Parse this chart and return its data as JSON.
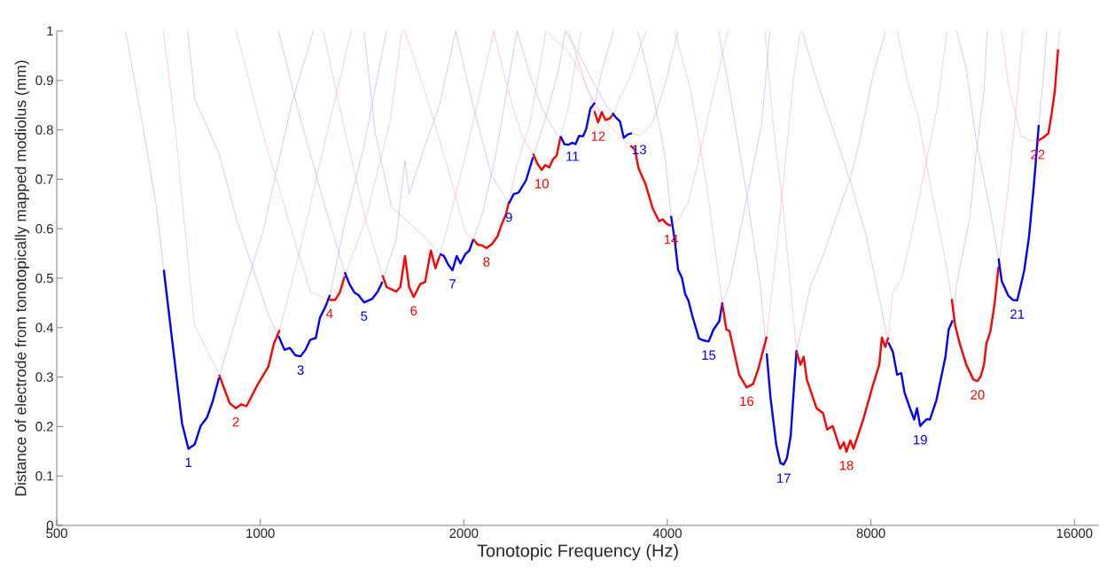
{
  "chart_data": {
    "type": "line",
    "xlabel": "Tonotopic Frequency (Hz)",
    "ylabel": "Distance of electrode from tonotopically mapped modiolus (mm)",
    "log": "x",
    "marker": "none",
    "xlim": [
      500,
      17400
    ],
    "ylim": [
      0,
      1
    ],
    "xticks": [
      500,
      1000,
      2000,
      4000,
      8000,
      16000
    ],
    "yticks": [
      0,
      0.1,
      0.2,
      0.3,
      0.4,
      0.5,
      0.6,
      0.7,
      0.8,
      0.9,
      1
    ],
    "series": [
      {
        "color": "#0000ff",
        "x": [
          720,
          766,
          783,
          800,
          816,
          834,
          850,
          869
        ],
        "values": [
          0.517,
          0.207,
          0.155,
          0.164,
          0.201,
          0.218,
          0.25,
          0.299
        ]
      },
      {
        "color": "#ff0000",
        "x": [
          869,
          901,
          920,
          938,
          954,
          993,
          1028,
          1047,
          1068
        ],
        "values": [
          0.305,
          0.247,
          0.237,
          0.245,
          0.241,
          0.287,
          0.321,
          0.367,
          0.395
        ]
      },
      {
        "color": "#0000ff",
        "x": [
          1064,
          1086,
          1106,
          1127,
          1147,
          1166,
          1185,
          1208,
          1225,
          1248,
          1268
        ],
        "values": [
          0.383,
          0.355,
          0.359,
          0.344,
          0.342,
          0.355,
          0.375,
          0.379,
          0.42,
          0.442,
          0.466
        ]
      },
      {
        "color": "#ff0000",
        "x": [
          1266,
          1290,
          1311,
          1333
        ],
        "values": [
          0.456,
          0.456,
          0.471,
          0.504
        ]
      },
      {
        "color": "#0000ff",
        "x": [
          1333,
          1355,
          1378,
          1397,
          1424,
          1463,
          1492,
          1516
        ],
        "values": [
          0.512,
          0.488,
          0.471,
          0.466,
          0.451,
          0.458,
          0.473,
          0.493
        ]
      },
      {
        "color": "#ff0000",
        "x": [
          1516,
          1538,
          1589,
          1611,
          1637,
          1660,
          1686,
          1724,
          1753,
          1788,
          1816,
          1843
        ],
        "values": [
          0.506,
          0.482,
          0.473,
          0.482,
          0.545,
          0.482,
          0.462,
          0.488,
          0.492,
          0.556,
          0.52,
          0.546
        ]
      },
      {
        "color": "#0000ff",
        "x": [
          1843,
          1869,
          1898,
          1925,
          1952,
          1978,
          2011,
          2038,
          2066
        ],
        "values": [
          0.549,
          0.545,
          0.527,
          0.516,
          0.545,
          0.53,
          0.549,
          0.556,
          0.579
        ]
      },
      {
        "color": "#ff0000",
        "x": [
          2066,
          2096,
          2130,
          2160,
          2201,
          2244,
          2274,
          2307,
          2332
        ],
        "values": [
          0.579,
          0.568,
          0.566,
          0.561,
          0.569,
          0.585,
          0.608,
          0.628,
          0.654
        ]
      },
      {
        "color": "#0000ff",
        "x": [
          2332,
          2370,
          2410,
          2472,
          2532
        ],
        "values": [
          0.651,
          0.67,
          0.673,
          0.698,
          0.745
        ]
      },
      {
        "color": "#ff0000",
        "x": [
          2532,
          2568,
          2608,
          2640,
          2675,
          2710,
          2744,
          2780
        ],
        "values": [
          0.752,
          0.732,
          0.719,
          0.729,
          0.724,
          0.741,
          0.748,
          0.786
        ]
      },
      {
        "color": "#0000ff",
        "x": [
          2780,
          2817,
          2856,
          2895,
          2926,
          2962,
          3002,
          3034,
          3078,
          3126
        ],
        "values": [
          0.787,
          0.771,
          0.77,
          0.774,
          0.771,
          0.788,
          0.787,
          0.802,
          0.843,
          0.855
        ]
      },
      {
        "color": "#ff0000",
        "x": [
          3119,
          3160,
          3200,
          3240,
          3288,
          3331
        ],
        "values": [
          0.838,
          0.815,
          0.836,
          0.82,
          0.823,
          0.833
        ]
      },
      {
        "color": "#0000ff",
        "x": [
          3318,
          3358,
          3404,
          3448,
          3497,
          3544
        ],
        "values": [
          0.834,
          0.825,
          0.817,
          0.784,
          0.791,
          0.793
        ]
      },
      {
        "color": "#ff0000",
        "x": [
          3528,
          3582,
          3627,
          3714,
          3806,
          3890,
          3937,
          3992,
          4050
        ],
        "values": [
          0.768,
          0.76,
          0.722,
          0.69,
          0.641,
          0.615,
          0.619,
          0.61,
          0.606
        ]
      },
      {
        "color": "#0000ff",
        "x": [
          4050,
          4103,
          4149,
          4203,
          4250,
          4297,
          4358,
          4455,
          4528,
          4604,
          4680,
          4774,
          4825
        ],
        "values": [
          0.626,
          0.576,
          0.517,
          0.501,
          0.468,
          0.455,
          0.422,
          0.378,
          0.374,
          0.372,
          0.396,
          0.413,
          0.451
        ]
      },
      {
        "color": "#ff0000",
        "x": [
          4825,
          4890,
          4944,
          5009,
          5108,
          5240,
          5356,
          5456,
          5610
        ],
        "values": [
          0.447,
          0.396,
          0.393,
          0.357,
          0.305,
          0.279,
          0.286,
          0.318,
          0.382
        ]
      },
      {
        "color": "#0000ff",
        "x": [
          5610,
          5682,
          5797,
          5879,
          5944,
          6010,
          6088,
          6156,
          6211
        ],
        "values": [
          0.348,
          0.26,
          0.162,
          0.126,
          0.123,
          0.136,
          0.181,
          0.279,
          0.354
        ]
      },
      {
        "color": "#ff0000",
        "x": [
          6211,
          6293,
          6364,
          6432,
          6648,
          6797,
          6893,
          7023,
          7205,
          7296,
          7361,
          7459,
          7541,
          7793,
          8036,
          8231,
          8303,
          8400,
          8491
        ],
        "values": [
          0.351,
          0.325,
          0.341,
          0.295,
          0.237,
          0.227,
          0.194,
          0.201,
          0.155,
          0.168,
          0.149,
          0.172,
          0.155,
          0.214,
          0.279,
          0.325,
          0.38,
          0.361,
          0.38
        ]
      },
      {
        "color": "#0000ff",
        "x": [
          8491,
          8621,
          8746,
          8871,
          8969,
          9139,
          9270,
          9360,
          9462,
          9576,
          9673,
          9780,
          9998,
          10312,
          10424,
          10570
        ],
        "values": [
          0.37,
          0.351,
          0.305,
          0.308,
          0.269,
          0.237,
          0.214,
          0.237,
          0.201,
          0.209,
          0.215,
          0.214,
          0.253,
          0.341,
          0.396,
          0.415
        ]
      },
      {
        "color": "#ff0000",
        "x": [
          10535,
          10654,
          10829,
          11071,
          11342,
          11502,
          11631,
          11758,
          11852,
          12021,
          12192,
          12356
        ],
        "values": [
          0.458,
          0.406,
          0.367,
          0.325,
          0.295,
          0.292,
          0.302,
          0.325,
          0.367,
          0.393,
          0.449,
          0.524
        ]
      },
      {
        "color": "#0000ff",
        "x": [
          12356,
          12491,
          12770,
          12979,
          13168,
          13342,
          13490,
          13709,
          13939,
          14170
        ],
        "values": [
          0.54,
          0.494,
          0.465,
          0.456,
          0.455,
          0.488,
          0.517,
          0.585,
          0.69,
          0.81
        ]
      },
      {
        "color": "#ff0000",
        "x": [
          14122,
          14375,
          14642,
          14806,
          14967,
          15134
        ],
        "values": [
          0.778,
          0.784,
          0.793,
          0.833,
          0.879,
          0.963
        ]
      },
      {
        "color": "#b8b8ff",
        "x": [
          632,
          672,
          702,
          720,
          800,
          869,
          920,
          1008,
          1113,
          1198
        ],
        "values": [
          1,
          0.8,
          0.644,
          0.517,
          null,
          0.299,
          0.416,
          0.592,
          0.853,
          1
        ]
      },
      {
        "color": "#ffb8b8",
        "x": [
          719,
          749,
          799,
          823,
          869,
          954,
          1068,
          1137,
          1228,
          1363
        ],
        "values": [
          1,
          0.8,
          0.406,
          0.37,
          0.305,
          null,
          0.395,
          0.54,
          0.739,
          1
        ]
      },
      {
        "color": "#b8b8ff",
        "x": [
          781,
          800,
          869,
          923,
          1030,
          1064,
          1166,
          1268,
          1333,
          1424,
          1537
        ],
        "values": [
          1,
          0.862,
          0.752,
          0.618,
          0.422,
          0.383,
          null,
          0.466,
          0.611,
          0.768,
          1
        ]
      },
      {
        "color": "#ffb8b8",
        "x": [
          921,
          1008,
          1137,
          1188,
          1266,
          1311,
          1333,
          1431,
          1554,
          1620
        ],
        "values": [
          1,
          0.794,
          0.553,
          0.471,
          0.456,
          null,
          0.504,
          0.618,
          0.813,
          1
        ]
      },
      {
        "color": "#b8b8ff",
        "x": [
          1064,
          1137,
          1255,
          1333,
          1424,
          1516,
          1589,
          1637,
          1660,
          1753,
          1843,
          1946
        ],
        "values": [
          1,
          0.84,
          0.631,
          0.512,
          null,
          0.493,
          0.579,
          0.739,
          0.67,
          0.768,
          0.853,
          1
        ]
      },
      {
        "color": "#ffb8b8",
        "x": [
          1239,
          1326,
          1431,
          1516,
          1660,
          1843,
          1904,
          2011,
          2215
        ],
        "values": [
          1,
          0.813,
          0.618,
          0.506,
          null,
          0.546,
          0.618,
          0.748,
          1
        ]
      },
      {
        "color": "#b8b8ff",
        "x": [
          1424,
          1479,
          1563,
          1743,
          1843,
          1952,
          2066,
          2124,
          2220,
          2397
        ],
        "values": [
          1,
          0.794,
          0.644,
          0.586,
          0.549,
          null,
          0.579,
          0.625,
          0.735,
          1
        ]
      },
      {
        "color": "#ffb8b8",
        "x": [
          1636,
          1763,
          1883,
          2011,
          2066,
          2201,
          2332,
          2397,
          2505,
          2646
        ],
        "values": [
          1,
          0.866,
          0.735,
          0.592,
          0.579,
          null,
          0.654,
          0.729,
          0.813,
          1
        ]
      },
      {
        "color": "#b8b8ff",
        "x": [
          1946,
          2056,
          2196,
          2332,
          2410,
          2532,
          2646,
          2765,
          2826
        ],
        "values": [
          1,
          0.859,
          0.709,
          0.651,
          null,
          0.745,
          0.827,
          0.924,
          1
        ]
      },
      {
        "color": "#ffb8b8",
        "x": [
          2215,
          2294,
          2371,
          2450,
          2532,
          2675,
          2780,
          2857,
          2920,
          2986
        ],
        "values": [
          1,
          0.911,
          0.84,
          0.781,
          0.752,
          null,
          0.786,
          0.846,
          0.931,
          1
        ]
      },
      {
        "color": "#b8b8ff",
        "x": [
          2397,
          2505,
          2617,
          2735,
          2780,
          2926,
          3126,
          3188,
          3259,
          3331
        ],
        "values": [
          1,
          0.911,
          0.84,
          0.794,
          0.787,
          null,
          0.855,
          0.911,
          0.957,
          1
        ]
      },
      {
        "color": "#ffb8b8",
        "x": [
          2646,
          2857,
          2986,
          3085,
          3119,
          3240,
          3331,
          3405,
          3519,
          3718
        ],
        "values": [
          1,
          0.957,
          0.911,
          0.866,
          0.838,
          null,
          0.833,
          0.866,
          0.905,
          1
        ]
      },
      {
        "color": "#b8b8ff",
        "x": [
          2826,
          2986,
          3119,
          3259,
          3318,
          3448,
          3544,
          3636,
          3800,
          3970,
          4149
        ],
        "values": [
          1,
          0.944,
          0.892,
          0.846,
          0.834,
          null,
          0.793,
          0.788,
          0.813,
          0.892,
          1
        ]
      },
      {
        "color": "#ffb8b8",
        "x": [
          2857,
          3051,
          3259,
          3481,
          3528,
          3806,
          4050,
          4149,
          4287,
          4431,
          4629,
          4917
        ],
        "values": [
          1,
          0.879,
          0.813,
          0.774,
          0.768,
          null,
          0.606,
          0.618,
          0.651,
          0.729,
          0.846,
          1
        ]
      },
      {
        "color": "#b8b8ff",
        "x": [
          3616,
          3800,
          3970,
          4050,
          4455,
          4825,
          4944,
          5222,
          5517,
          5671
        ],
        "values": [
          1,
          0.879,
          0.748,
          0.626,
          null,
          0.451,
          0.488,
          0.651,
          0.813,
          1
        ]
      },
      {
        "color": "#ffb8b8",
        "x": [
          4103,
          4334,
          4579,
          4825,
          5108,
          5610,
          5797,
          5990,
          6157,
          6293
        ],
        "values": [
          1,
          0.879,
          0.683,
          0.447,
          null,
          0.382,
          0.553,
          0.748,
          0.911,
          1
        ]
      },
      {
        "color": "#b8b8ff",
        "x": [
          4760,
          4944,
          5222,
          5485,
          5610,
          5879,
          6211,
          6330,
          6503,
          6831,
          7140,
          7459,
          7709,
          8056,
          8415
        ],
        "values": [
          1,
          0.879,
          0.683,
          0.489,
          0.348,
          null,
          0.354,
          0.403,
          0.481,
          0.553,
          0.631,
          0.703,
          0.781,
          0.911,
          1
        ]
      },
      {
        "color": "#ffb8b8",
        "x": [
          5577,
          5733,
          5924,
          6211,
          7205,
          8491,
          8604,
          8891,
          9289,
          9601,
          10030,
          10366
        ],
        "values": [
          1,
          0.813,
          0.651,
          0.351,
          null,
          0.38,
          0.468,
          0.501,
          0.618,
          0.716,
          0.846,
          1
        ]
      },
      {
        "color": "#b8b8ff",
        "x": [
          6330,
          6612,
          7062,
          7459,
          7878,
          8415,
          8491,
          9139,
          10570,
          10711,
          11190,
          11440,
          11760,
          11886
        ],
        "values": [
          1,
          0.911,
          0.794,
          0.696,
          0.585,
          0.396,
          0.37,
          null,
          0.415,
          0.488,
          0.618,
          0.748,
          0.879,
          1
        ]
      },
      {
        "color": "#ffb8b8",
        "x": [
          8744,
          9089,
          9394,
          9811,
          10254,
          10535,
          11342,
          12356,
          12769,
          13195,
          13412
        ],
        "values": [
          1,
          0.892,
          0.827,
          0.683,
          0.553,
          0.458,
          null,
          0.524,
          0.683,
          0.879,
          1
        ]
      },
      {
        "color": "#b8b8ff",
        "x": [
          10711,
          11071,
          11440,
          11957,
          12356,
          13168,
          14170,
          14405,
          14561
        ],
        "values": [
          1,
          0.924,
          0.781,
          0.651,
          0.54,
          null,
          0.81,
          0.911,
          1
        ]
      },
      {
        "color": "#ffb8b8",
        "x": [
          12492,
          12769,
          13338,
          13784,
          14122,
          14642,
          15134,
          15220
        ],
        "values": [
          1,
          0.892,
          0.788,
          0.778,
          0.778,
          null,
          0.963,
          1
        ]
      }
    ],
    "annotations": [
      {
        "text": "1",
        "x": 783,
        "y": 0.155
      },
      {
        "text": "2",
        "x": 920,
        "y": 0.237
      },
      {
        "text": "3",
        "x": 1147,
        "y": 0.342
      },
      {
        "text": "4",
        "x": 1266,
        "y": 0.456
      },
      {
        "text": "5",
        "x": 1424,
        "y": 0.451
      },
      {
        "text": "6",
        "x": 1686,
        "y": 0.462
      },
      {
        "text": "7",
        "x": 1925,
        "y": 0.516
      },
      {
        "text": "8",
        "x": 2160,
        "y": 0.561
      },
      {
        "text": "9",
        "x": 2332,
        "y": 0.651
      },
      {
        "text": "10",
        "x": 2608,
        "y": 0.719
      },
      {
        "text": "11",
        "x": 2895,
        "y": 0.774
      },
      {
        "text": "12",
        "x": 3160,
        "y": 0.815
      },
      {
        "text": "13",
        "x": 3636,
        "y": 0.788
      },
      {
        "text": "14",
        "x": 4050,
        "y": 0.606
      },
      {
        "text": "15",
        "x": 4604,
        "y": 0.372
      },
      {
        "text": "16",
        "x": 5240,
        "y": 0.279
      },
      {
        "text": "17",
        "x": 5944,
        "y": 0.123
      },
      {
        "text": "18",
        "x": 7361,
        "y": 0.149
      },
      {
        "text": "19",
        "x": 9462,
        "y": 0.201
      },
      {
        "text": "20",
        "x": 11502,
        "y": 0.292
      },
      {
        "text": "21",
        "x": 13168,
        "y": 0.455
      },
      {
        "text": "22",
        "x": 14122,
        "y": 0.778
      }
    ]
  }
}
